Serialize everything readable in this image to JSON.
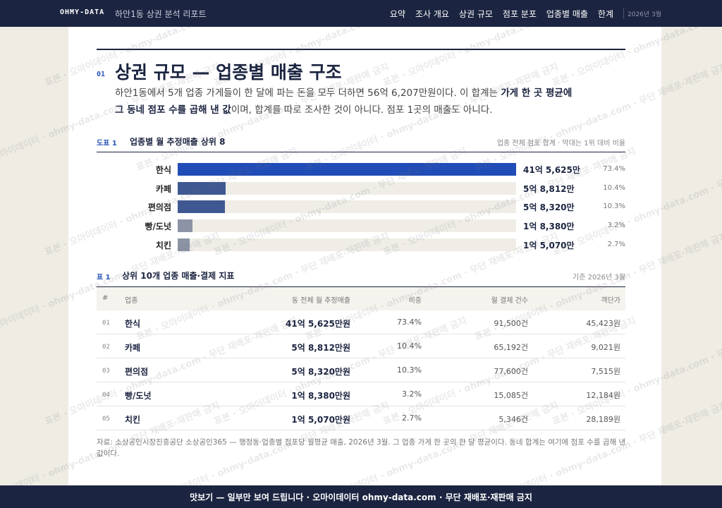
{
  "nav": {
    "brand": "OHMY-DATA",
    "report": "하안1동 상권 분석 리포트",
    "links": [
      "요약",
      "조사 개요",
      "상권 규모",
      "점포 분포",
      "업종별 매출",
      "한계"
    ],
    "date": "2026년 3월"
  },
  "section": {
    "number": "01",
    "title": "상권 규모 — 업종별 매출 구조",
    "lead": [
      "하안1동에서 5개 업종 가게들이 한 달에 파는 돈을 모두 더하면 56억 6,207만원이다. 이 합계는 ",
      "가게 한 곳 평균에 그 동네 점포 수를 곱해 낸 값",
      "이며, 합계를 따로 조사한 것이 아니다. 점포 1곳의 매출도 아니다."
    ]
  },
  "figure": {
    "label": "도표 1",
    "title": "업종별 월 추정매출 상위 8",
    "note": "업종 전체 점포 합계 · 막대는 1위 대비 비율"
  },
  "chart_data": {
    "type": "hbar",
    "categories": [
      "한식",
      "카페",
      "편의점",
      "빵/도넛",
      "치킨"
    ],
    "values": [
      415625,
      58812,
      58320,
      18380,
      15070
    ],
    "value_labels": [
      "41억 5,625만",
      "5억 8,812만",
      "5억 8,320만",
      "1억 8,380만",
      "1억 5,070만"
    ],
    "shares": [
      "73.4%",
      "10.4%",
      "10.3%",
      "3.2%",
      "2.7%"
    ],
    "colors": [
      "#1f4cb6",
      "#3f5891",
      "#3f5891",
      "#8b93a5",
      "#8b93a5"
    ],
    "track_color": "#efede6",
    "xlim": [
      0,
      415625
    ]
  },
  "table": {
    "label": "표 1",
    "title": "상위 10개 업종 매출·결제 지표",
    "note": "기준 2026년 3월",
    "columns": [
      "#",
      "업종",
      "동 전체 월 추정매출",
      "비중",
      "월 결제 건수",
      "객단가"
    ],
    "rows": [
      [
        "01",
        "한식",
        "41억 5,625만원",
        "73.4%",
        "91,500건",
        "45,423원"
      ],
      [
        "02",
        "카페",
        "5억 8,812만원",
        "10.4%",
        "65,192건",
        "9,021원"
      ],
      [
        "03",
        "편의점",
        "5억 8,320만원",
        "10.3%",
        "77,600건",
        "7,515원"
      ],
      [
        "04",
        "빵/도넛",
        "1억 8,380만원",
        "3.2%",
        "15,085건",
        "12,184원"
      ],
      [
        "05",
        "치킨",
        "1억 5,070만원",
        "2.7%",
        "5,346건",
        "28,189원"
      ]
    ]
  },
  "source": "자료: 소상공인시장진흥공단 소상공인365 — 행정동·업종별 점포당 월평균 매출, 2026년 3월. 그 업종 가게 한 곳의 한 달 평균이다. 동네 합계는 여기에 점포 수를 곱해 낸 값이다.",
  "footer": "맛보기 — 일부만 보여 드립니다 · 오마이데이터 ohmy-data.com · 무단 재배포·재판매 금지",
  "watermark": "표본 · 오마이데이터 · ohmy-data.com · 무단 재배포·재판매 금지"
}
